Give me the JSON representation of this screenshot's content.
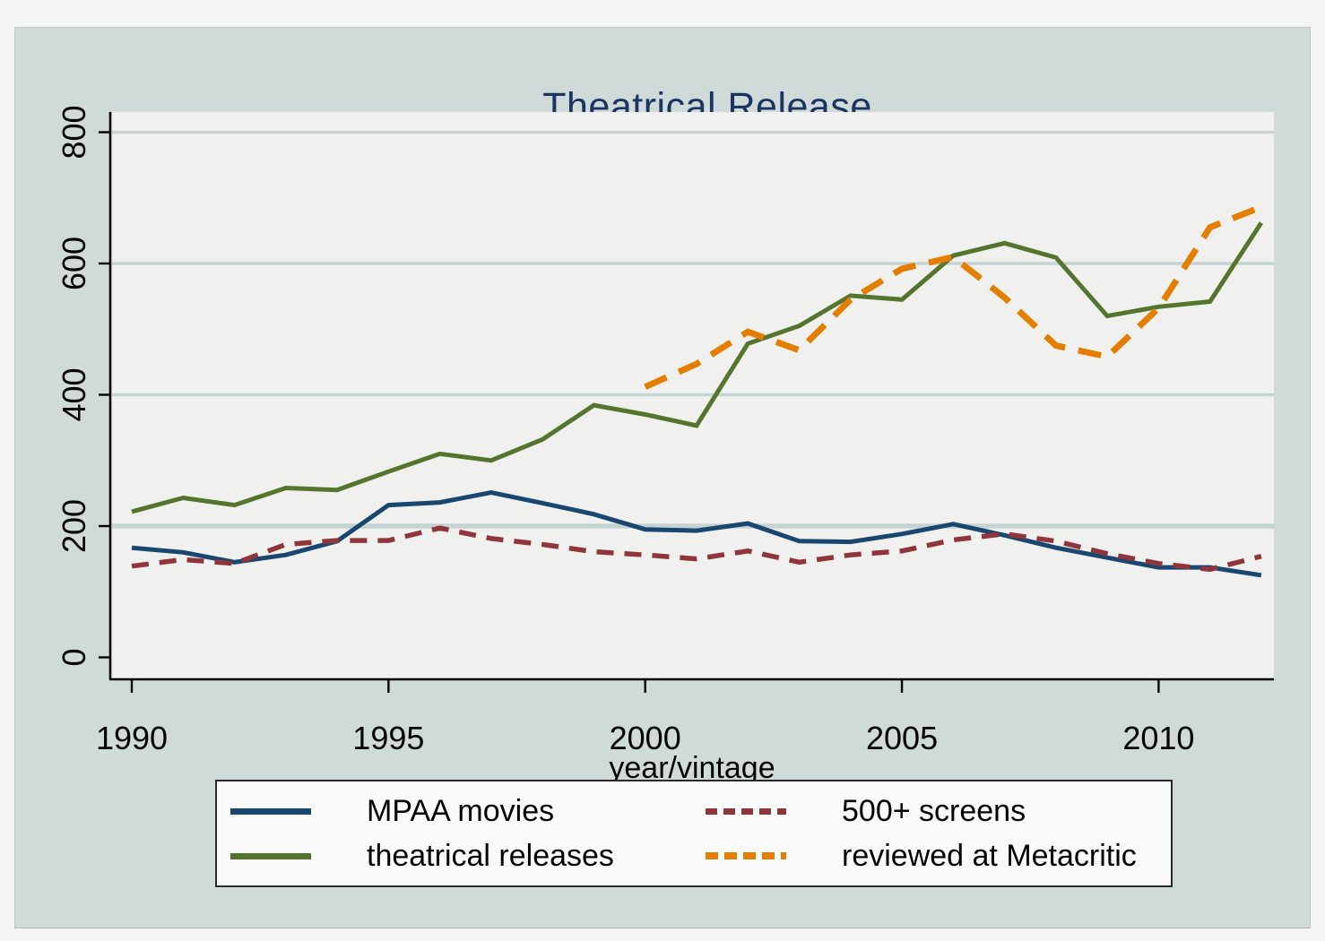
{
  "chart_data": {
    "type": "line",
    "title": "Theatrical Release",
    "title_color": "#1c3461",
    "xlabel": "year/vintage",
    "ylabel": "",
    "x": [
      1990,
      1991,
      1992,
      1993,
      1994,
      1995,
      1996,
      1997,
      1998,
      1999,
      2000,
      2001,
      2002,
      2003,
      2004,
      2005,
      2006,
      2007,
      2008,
      2009,
      2010,
      2011,
      2012
    ],
    "xticks": [
      1990,
      1995,
      2000,
      2005,
      2010
    ],
    "yticks": [
      0,
      200,
      400,
      600,
      800
    ],
    "xlim": [
      1989.55,
      2012.3
    ],
    "ylim": [
      0,
      800
    ],
    "grid": "horizontal",
    "gridline_color": "#c5d4d3",
    "plot_background": "#f0f1ef",
    "outer_background": "#d0dbd9",
    "legend_position": "bottom",
    "series": [
      {
        "name": "MPAA movies",
        "color": "#1a476f",
        "style": "solid",
        "values": [
          167,
          160,
          145,
          156,
          177,
          232,
          236,
          251,
          235,
          218,
          195,
          193,
          204,
          177,
          176,
          188,
          203,
          186,
          167,
          152,
          137,
          137,
          125
        ]
      },
      {
        "name": "500+ screens",
        "color": "#90353b",
        "style": "dashed",
        "values": [
          139,
          149,
          143,
          172,
          178,
          178,
          197,
          181,
          172,
          161,
          156,
          150,
          162,
          145,
          156,
          162,
          179,
          188,
          177,
          158,
          143,
          134,
          154
        ]
      },
      {
        "name": "theatrical releases",
        "color": "#55752f",
        "style": "solid",
        "values": [
          222,
          243,
          232,
          258,
          255,
          283,
          310,
          300,
          332,
          384,
          370,
          353,
          478,
          505,
          551,
          545,
          612,
          631,
          609,
          520,
          534,
          542,
          662
        ]
      },
      {
        "name": "reviewed at Metacritic",
        "color": "#e37e00",
        "style": "dashed",
        "values": [
          null,
          null,
          null,
          null,
          null,
          null,
          null,
          null,
          null,
          null,
          412,
          447,
          496,
          468,
          545,
          592,
          610,
          548,
          475,
          458,
          532,
          655,
          686
        ]
      }
    ]
  }
}
